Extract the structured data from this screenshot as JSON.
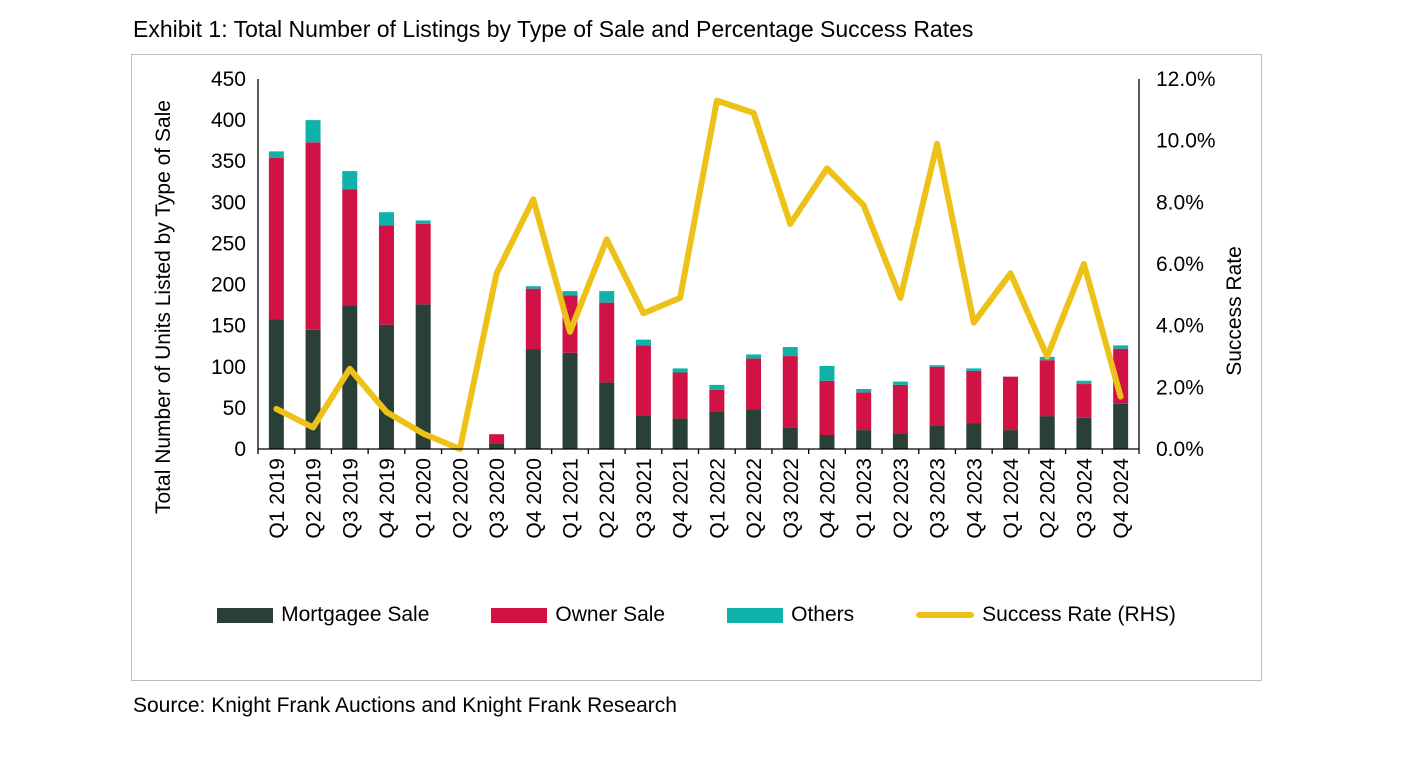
{
  "page": {
    "title": "Exhibit 1: Total Number of Listings by Type of Sale and Percentage Success Rates",
    "source": "Source: Knight Frank Auctions and Knight Frank Research"
  },
  "chart_data": {
    "type": "bar",
    "subtype": "stacked-bars-with-line-overlay",
    "grid": false,
    "legend_position": "bottom",
    "categories": [
      "Q1 2019",
      "Q2 2019",
      "Q3 2019",
      "Q4 2019",
      "Q1 2020",
      "Q2 2020",
      "Q3 2020",
      "Q4 2020",
      "Q1 2021",
      "Q2 2021",
      "Q3 2021",
      "Q4 2021",
      "Q1 2022",
      "Q2 2022",
      "Q3 2022",
      "Q4 2022",
      "Q1 2023",
      "Q2 2023",
      "Q3 2023",
      "Q4 2023",
      "Q1 2024",
      "Q2 2024",
      "Q3 2024",
      "Q4 2024"
    ],
    "series": [
      {
        "name": "Mortgagee Sale",
        "type": "bar",
        "stack": "total",
        "color": "#2a3f35",
        "values": [
          158,
          145,
          175,
          151,
          176,
          0,
          7,
          121,
          117,
          81,
          41,
          37,
          46,
          48,
          26,
          17,
          23,
          19,
          28,
          31,
          23,
          40,
          38,
          55
        ]
      },
      {
        "name": "Owner Sale",
        "type": "bar",
        "stack": "total",
        "color": "#d01245",
        "values": [
          196,
          228,
          141,
          121,
          98,
          0,
          11,
          74,
          70,
          97,
          85,
          56,
          26,
          62,
          87,
          66,
          46,
          59,
          72,
          64,
          65,
          68,
          41,
          67
        ]
      },
      {
        "name": "Others",
        "type": "bar",
        "stack": "total",
        "color": "#0fb2a9",
        "values": [
          8,
          27,
          22,
          16,
          4,
          0,
          0,
          3,
          5,
          14,
          7,
          5,
          6,
          5,
          11,
          18,
          4,
          4,
          2,
          3,
          0,
          4,
          4,
          4
        ]
      },
      {
        "name": "Success Rate (RHS)",
        "type": "line",
        "axis": "right",
        "color": "#edc117",
        "unit": "%",
        "values": [
          1.3,
          0.7,
          2.6,
          1.2,
          0.5,
          0.0,
          5.7,
          8.1,
          3.8,
          6.8,
          4.4,
          4.9,
          11.3,
          10.9,
          7.3,
          9.1,
          7.9,
          4.9,
          9.9,
          4.1,
          5.7,
          3.0,
          6.0,
          1.7
        ]
      }
    ],
    "left_axis": {
      "title": "Total Number of Units Listed by Type of Sale",
      "min": 0,
      "max": 450,
      "step": 50,
      "ticks": [
        "0",
        "50",
        "100",
        "150",
        "200",
        "250",
        "300",
        "350",
        "400",
        "450"
      ]
    },
    "right_axis": {
      "title": "Success Rate",
      "min": 0,
      "max": 12,
      "step": 2,
      "ticks": [
        "0.0%",
        "2.0%",
        "4.0%",
        "6.0%",
        "8.0%",
        "10.0%",
        "12.0%"
      ]
    }
  }
}
